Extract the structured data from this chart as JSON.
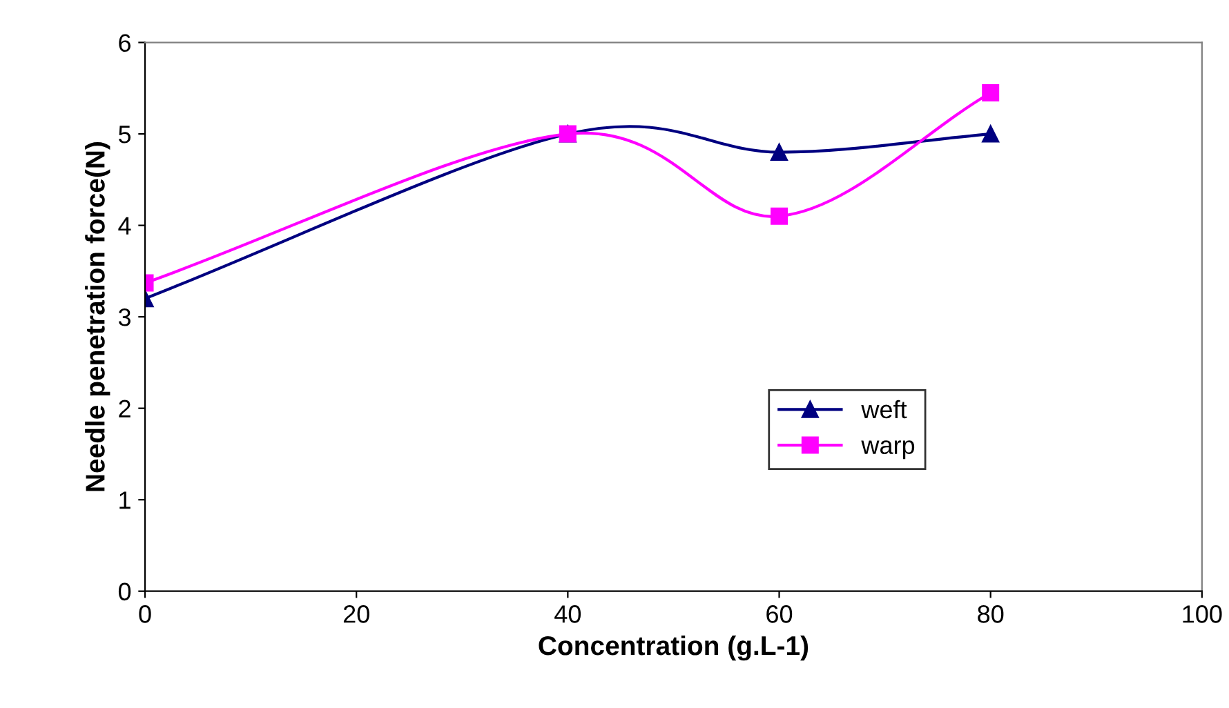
{
  "chart_data": {
    "type": "line",
    "xlabel": "Concentration (g.L-1)",
    "ylabel": "Needle penetration force(N)",
    "x": [
      0,
      40,
      60,
      80
    ],
    "series": [
      {
        "name": "weft",
        "color": "#000080",
        "values": [
          3.2,
          5.0,
          4.8,
          5.0
        ],
        "marker": "triangle"
      },
      {
        "name": "warp",
        "color": "#ff00ff",
        "values": [
          3.37,
          5.0,
          4.1,
          5.45
        ],
        "marker": "square"
      }
    ],
    "xlim": [
      0,
      100
    ],
    "xticks": [
      0,
      20,
      40,
      60,
      80,
      100
    ],
    "ylim": [
      0,
      6
    ],
    "yticks": [
      0,
      1,
      2,
      3,
      4,
      5,
      6
    ],
    "grid": false,
    "legend": "lower right",
    "line_style": "solid"
  }
}
